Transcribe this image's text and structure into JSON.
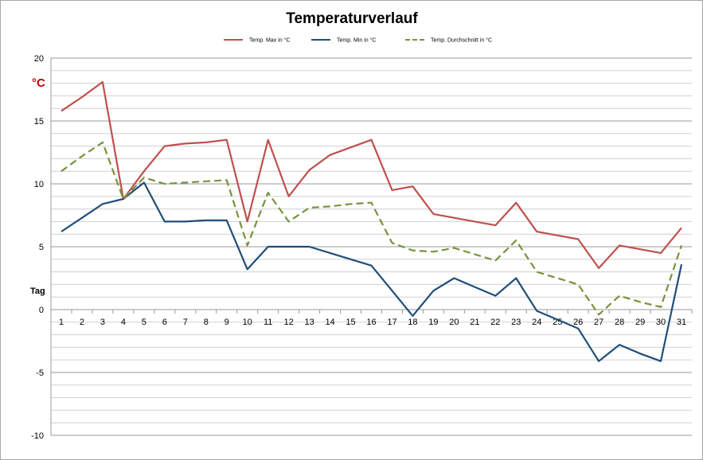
{
  "chart_data": {
    "type": "line",
    "title": "Temperaturverlauf",
    "ylabel_unit": "°C",
    "xlabel": "Tag",
    "ylim": [
      -10,
      20
    ],
    "yticks": [
      -10,
      -5,
      0,
      5,
      10,
      15,
      20
    ],
    "minor_grid_step": 1,
    "grid": true,
    "legend_position": "top",
    "unit_color": "#c00000",
    "x": [
      1,
      2,
      3,
      4,
      5,
      6,
      7,
      8,
      9,
      10,
      11,
      12,
      13,
      14,
      15,
      16,
      17,
      18,
      19,
      20,
      21,
      22,
      23,
      24,
      25,
      26,
      27,
      28,
      29,
      30,
      31
    ],
    "series": [
      {
        "name": "Temp. Max in °C",
        "color": "#c0504d",
        "style": "solid",
        "values": [
          15.8,
          16.9,
          18.1,
          8.8,
          11.0,
          13.0,
          13.2,
          13.3,
          13.5,
          7.0,
          13.5,
          9.0,
          11.1,
          12.3,
          12.9,
          13.5,
          9.5,
          9.8,
          7.6,
          7.3,
          7.0,
          6.7,
          8.5,
          6.2,
          5.9,
          5.6,
          3.3,
          5.1,
          4.8,
          4.5,
          6.5
        ]
      },
      {
        "name": "Temp. Min in °C",
        "color": "#1f4e79",
        "style": "solid",
        "values": [
          6.2,
          7.3,
          8.4,
          8.8,
          10.1,
          7.0,
          7.0,
          7.1,
          7.1,
          3.2,
          5.0,
          5.0,
          5.0,
          4.5,
          4.0,
          3.5,
          1.5,
          -0.5,
          1.5,
          2.5,
          1.8,
          1.1,
          2.5,
          -0.1,
          -0.8,
          -1.5,
          -4.1,
          -2.8,
          -3.5,
          -4.1,
          3.6
        ]
      },
      {
        "name": "Temp. Durchschnitt in °C",
        "color": "#77933c",
        "style": "dashed",
        "values": [
          11.0,
          12.2,
          13.3,
          8.8,
          10.5,
          10.0,
          10.1,
          10.2,
          10.3,
          5.1,
          9.3,
          7.0,
          8.1,
          8.2,
          8.4,
          8.5,
          5.3,
          4.7,
          4.6,
          4.9,
          4.4,
          3.9,
          5.5,
          3.0,
          2.5,
          2.0,
          -0.4,
          1.1,
          0.6,
          0.2,
          5.1
        ]
      }
    ]
  }
}
